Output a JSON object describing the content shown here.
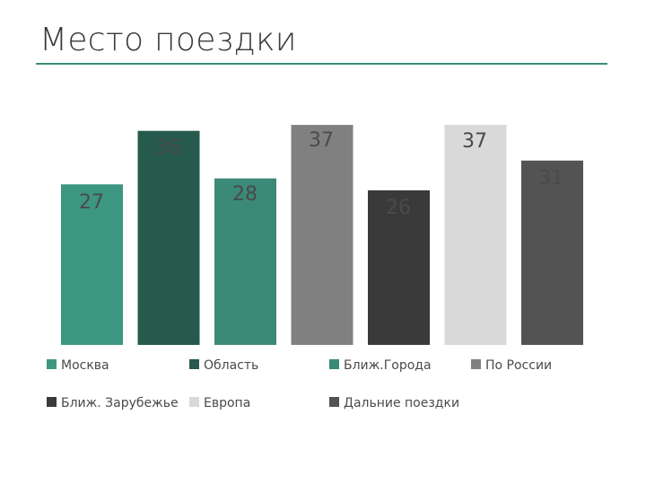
{
  "slide": {
    "title": "Место поездки"
  },
  "chart_data": {
    "type": "bar",
    "title": "",
    "xlabel": "",
    "ylabel": "",
    "ylim": [
      0,
      40
    ],
    "grid": false,
    "legend_position": "bottom",
    "series": [
      {
        "name": "Москва",
        "values": [
          27
        ],
        "color": "#3d9680"
      },
      {
        "name": "Область",
        "values": [
          36
        ],
        "color": "#265a4c"
      },
      {
        "name": "Ближ.Города",
        "values": [
          28
        ],
        "color": "#3a8a77"
      },
      {
        "name": "По России",
        "values": [
          37
        ],
        "color": "#808080"
      },
      {
        "name": "Ближ. Зарубежье",
        "values": [
          26
        ],
        "color": "#3a3a3a"
      },
      {
        "name": "Европа",
        "values": [
          37
        ],
        "color": "#d9d9d9"
      },
      {
        "name": "Дальние поездки",
        "values": [
          31
        ],
        "color": "#535353"
      }
    ]
  }
}
